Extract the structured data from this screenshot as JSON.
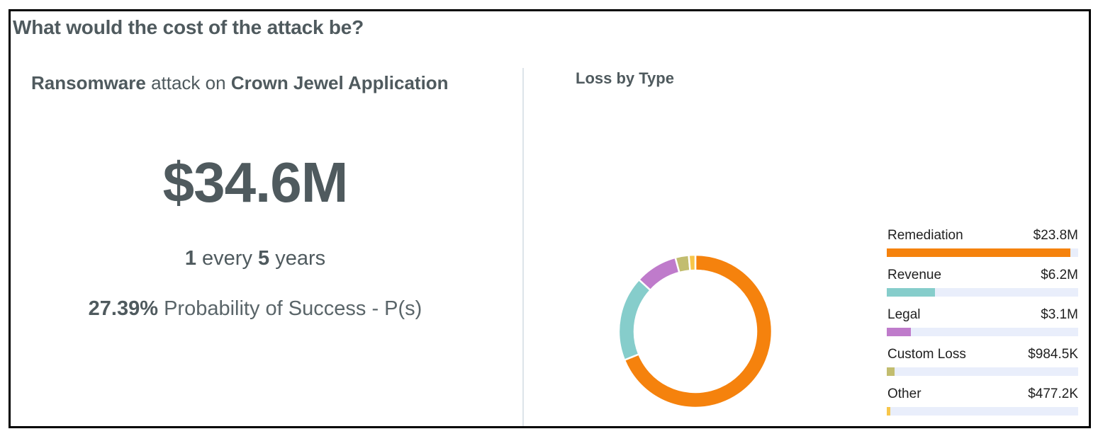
{
  "header": {
    "title": "What would the cost of the attack be?"
  },
  "scenario": {
    "threat": "Ransomware",
    "connector": " attack on ",
    "asset": "Crown Jewel Application"
  },
  "summary": {
    "total_cost": "$34.6M",
    "frequency_prefix": "1",
    "frequency_middle": " every ",
    "frequency_count": "5",
    "frequency_suffix": " years",
    "probability_value": "27.39%",
    "probability_label": " Probability of Success - P(s)"
  },
  "chart_data": {
    "type": "pie",
    "title": "Loss by Type",
    "donut": true,
    "categories": [
      "Remediation",
      "Revenue",
      "Legal",
      "Custom Loss",
      "Other"
    ],
    "value_labels": [
      "$23.8M",
      "$6.2M",
      "$3.1M",
      "$984.5K",
      "$477.2K"
    ],
    "values": [
      23.8,
      6.2,
      3.1,
      0.9845,
      0.4772
    ],
    "unit": "$M",
    "colors": [
      "#f5820d",
      "#86cdcb",
      "#bf7bcb",
      "#c2bd6f",
      "#f7c64a"
    ],
    "legend_position": "right",
    "bar_max": 24.8
  }
}
